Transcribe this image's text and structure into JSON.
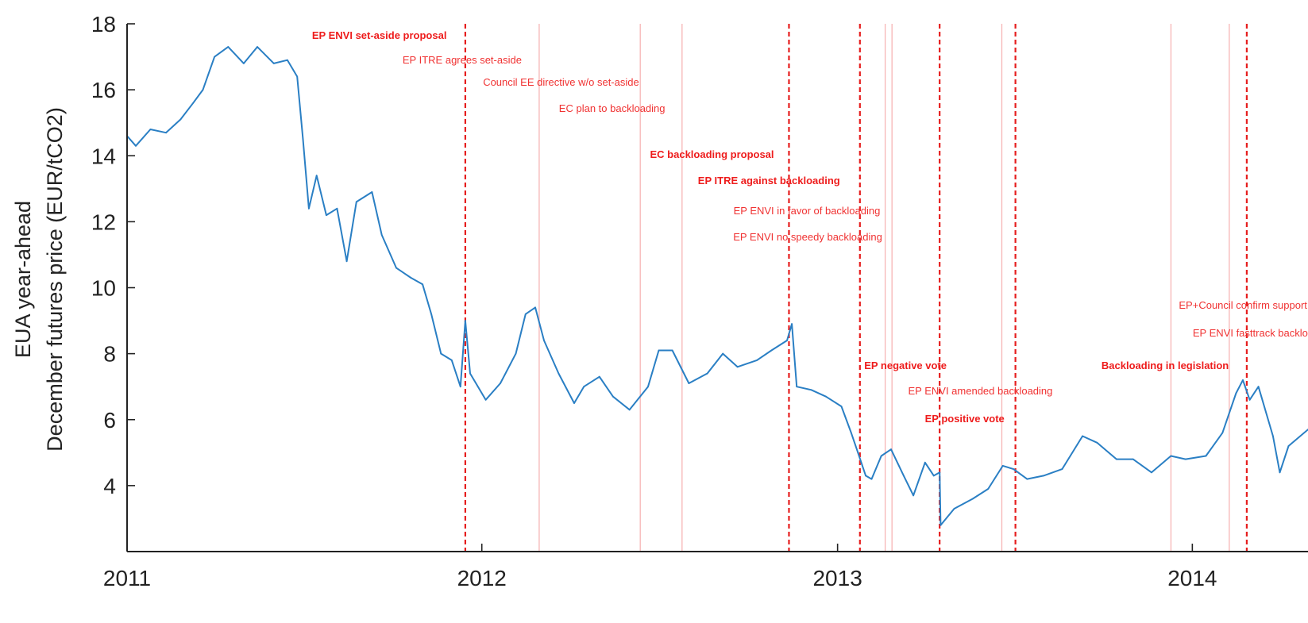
{
  "chart_data": {
    "type": "line",
    "title": "",
    "xlabel": "",
    "ylabel_lines": [
      "EUA year-ahead",
      "December futures price (EUR/tCO2)"
    ],
    "xlim": [
      "2011-01-01",
      "2014-04-30"
    ],
    "ylim": [
      2,
      18
    ],
    "x_ticks": [
      {
        "date": "2011-01-01",
        "label": "2011"
      },
      {
        "date": "2012-01-01",
        "label": "2012"
      },
      {
        "date": "2013-01-01",
        "label": "2013"
      },
      {
        "date": "2014-01-01",
        "label": "2014"
      }
    ],
    "y_ticks": [
      4,
      6,
      8,
      10,
      12,
      14,
      16,
      18
    ],
    "grid": false,
    "series": [
      {
        "color": "#2a7fc4",
        "points": [
          [
            "2011-01-01",
            14.6
          ],
          [
            "2011-01-10",
            14.3
          ],
          [
            "2011-01-25",
            14.8
          ],
          [
            "2011-02-10",
            14.7
          ],
          [
            "2011-02-25",
            15.1
          ],
          [
            "2011-03-10",
            15.6
          ],
          [
            "2011-03-20",
            16.0
          ],
          [
            "2011-04-01",
            17.0
          ],
          [
            "2011-04-15",
            17.3
          ],
          [
            "2011-05-01",
            16.8
          ],
          [
            "2011-05-15",
            17.3
          ],
          [
            "2011-06-01",
            16.8
          ],
          [
            "2011-06-15",
            16.9
          ],
          [
            "2011-06-25",
            16.4
          ],
          [
            "2011-07-01",
            14.5
          ],
          [
            "2011-07-07",
            12.4
          ],
          [
            "2011-07-15",
            13.4
          ],
          [
            "2011-07-25",
            12.2
          ],
          [
            "2011-08-05",
            12.4
          ],
          [
            "2011-08-15",
            10.8
          ],
          [
            "2011-08-25",
            12.6
          ],
          [
            "2011-09-10",
            12.9
          ],
          [
            "2011-09-20",
            11.6
          ],
          [
            "2011-10-05",
            10.6
          ],
          [
            "2011-10-20",
            10.3
          ],
          [
            "2011-11-01",
            10.1
          ],
          [
            "2011-11-10",
            9.2
          ],
          [
            "2011-11-20",
            8.0
          ],
          [
            "2011-12-01",
            7.8
          ],
          [
            "2011-12-10",
            7.0
          ],
          [
            "2011-12-15",
            9.0
          ],
          [
            "2011-12-20",
            7.4
          ],
          [
            "2012-01-05",
            6.6
          ],
          [
            "2012-01-20",
            7.1
          ],
          [
            "2012-02-05",
            8.0
          ],
          [
            "2012-02-15",
            9.2
          ],
          [
            "2012-02-25",
            9.4
          ],
          [
            "2012-03-05",
            8.4
          ],
          [
            "2012-03-20",
            7.4
          ],
          [
            "2012-04-05",
            6.5
          ],
          [
            "2012-04-15",
            7.0
          ],
          [
            "2012-05-01",
            7.3
          ],
          [
            "2012-05-15",
            6.7
          ],
          [
            "2012-06-01",
            6.3
          ],
          [
            "2012-06-20",
            7.0
          ],
          [
            "2012-07-01",
            8.1
          ],
          [
            "2012-07-15",
            8.1
          ],
          [
            "2012-08-01",
            7.1
          ],
          [
            "2012-08-20",
            7.4
          ],
          [
            "2012-09-05",
            8.0
          ],
          [
            "2012-09-20",
            7.6
          ],
          [
            "2012-10-10",
            7.8
          ],
          [
            "2012-10-25",
            8.1
          ],
          [
            "2012-11-10",
            8.4
          ],
          [
            "2012-11-15",
            8.9
          ],
          [
            "2012-11-20",
            7.0
          ],
          [
            "2012-12-05",
            6.9
          ],
          [
            "2012-12-20",
            6.7
          ],
          [
            "2013-01-05",
            6.4
          ],
          [
            "2013-01-15",
            5.6
          ],
          [
            "2013-01-22",
            5.0
          ],
          [
            "2013-01-30",
            4.3
          ],
          [
            "2013-02-05",
            4.2
          ],
          [
            "2013-02-15",
            4.9
          ],
          [
            "2013-02-25",
            5.1
          ],
          [
            "2013-03-10",
            4.3
          ],
          [
            "2013-03-20",
            3.7
          ],
          [
            "2013-04-01",
            4.7
          ],
          [
            "2013-04-10",
            4.3
          ],
          [
            "2013-04-16",
            4.4
          ],
          [
            "2013-04-17",
            2.8
          ],
          [
            "2013-05-01",
            3.3
          ],
          [
            "2013-05-20",
            3.6
          ],
          [
            "2013-06-05",
            3.9
          ],
          [
            "2013-06-20",
            4.6
          ],
          [
            "2013-07-01",
            4.5
          ],
          [
            "2013-07-15",
            4.2
          ],
          [
            "2013-08-01",
            4.3
          ],
          [
            "2013-08-20",
            4.5
          ],
          [
            "2013-09-10",
            5.5
          ],
          [
            "2013-09-25",
            5.3
          ],
          [
            "2013-10-15",
            4.8
          ],
          [
            "2013-11-01",
            4.8
          ],
          [
            "2013-11-20",
            4.4
          ],
          [
            "2013-12-10",
            4.9
          ],
          [
            "2013-12-25",
            4.8
          ],
          [
            "2014-01-15",
            4.9
          ],
          [
            "2014-02-01",
            5.6
          ],
          [
            "2014-02-15",
            6.8
          ],
          [
            "2014-02-22",
            7.2
          ],
          [
            "2014-03-01",
            6.6
          ],
          [
            "2014-03-10",
            7.0
          ],
          [
            "2014-03-25",
            5.5
          ],
          [
            "2014-04-01",
            4.4
          ],
          [
            "2014-04-10",
            5.2
          ],
          [
            "2014-04-30",
            5.7
          ]
        ]
      }
    ],
    "events": [
      {
        "date": "2011-12-15",
        "label": "EP ENVI set-aside proposal",
        "major": true
      },
      {
        "date": "2012-02-29",
        "label": "EP ITRE agrees set-aside",
        "major": false
      },
      {
        "date": "2012-06-12",
        "label": "Council EE directive w/o set-aside",
        "major": false
      },
      {
        "date": "2012-07-25",
        "label": "EC plan to backloading",
        "major": false
      },
      {
        "date": "2012-11-12",
        "label": "EC backloading proposal",
        "major": true
      },
      {
        "date": "2013-01-24",
        "label": "EP ITRE against backloading",
        "major": true
      },
      {
        "date": "2013-02-19",
        "label": "EP ENVI in favor of backloading",
        "major": false
      },
      {
        "date": "2013-02-26",
        "label": "EP ENVI no speedy backloading",
        "major": false
      },
      {
        "date": "2013-04-16",
        "label": "EP negative vote",
        "major": true
      },
      {
        "date": "2013-06-19",
        "label": "EP ENVI amended backloading",
        "major": false
      },
      {
        "date": "2013-07-03",
        "label": "EP positive vote",
        "major": true
      },
      {
        "date": "2013-12-10",
        "label": "EP+Council confirm support",
        "major": false
      },
      {
        "date": "2014-02-08",
        "label": "EP ENVI fasttrack backloading",
        "major": false
      },
      {
        "date": "2014-02-26",
        "label": "Backloading in legislation",
        "major": true
      }
    ]
  }
}
